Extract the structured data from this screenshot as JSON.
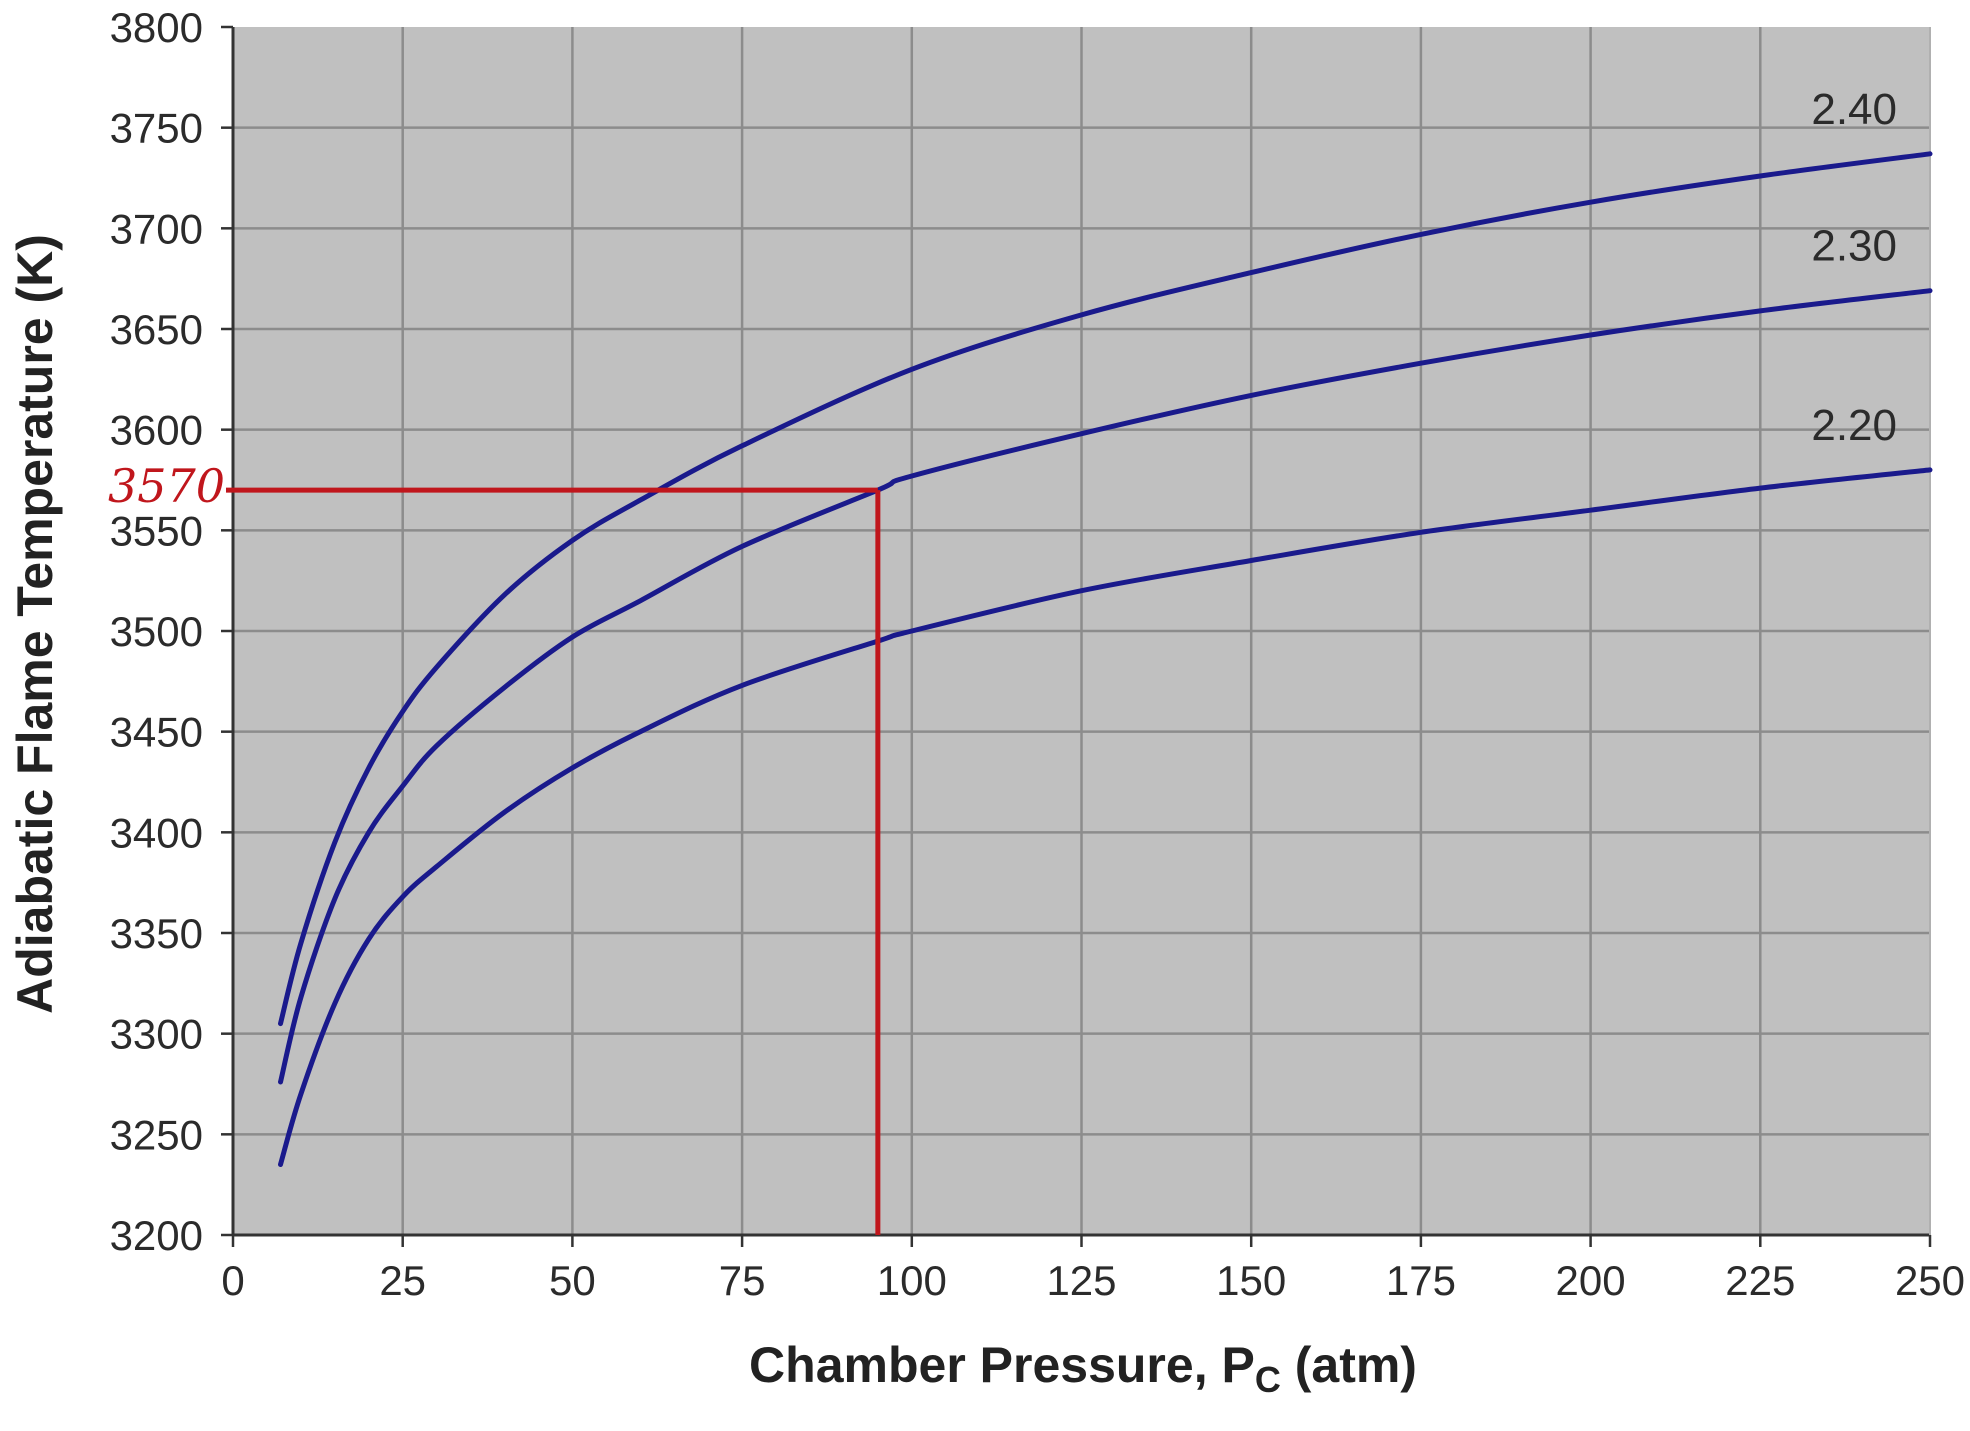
{
  "chart_data": {
    "type": "line",
    "xlabel_main": "Chamber Pressure, P",
    "xlabel_sub": "C",
    "xlabel_unit": " (atm)",
    "ylabel": "Adiabatic Flame Temperature (K)",
    "xlim": [
      0,
      250
    ],
    "ylim": [
      3200,
      3800
    ],
    "x_ticks": [
      "0",
      "25",
      "50",
      "75",
      "100",
      "125",
      "150",
      "175",
      "200",
      "225",
      "250"
    ],
    "y_ticks": [
      "3200",
      "3250",
      "3300",
      "3350",
      "3400",
      "3450",
      "3500",
      "3550",
      "3600",
      "3650",
      "3700",
      "3750",
      "3800"
    ],
    "grid": true,
    "plot_background": "#c0c0c0",
    "grid_color": "#8c8c8c",
    "series_color": "#1a1a8c",
    "series": [
      {
        "name": "2.40",
        "x": [
          7,
          10,
          15,
          20,
          25,
          30,
          40,
          50,
          60,
          75,
          100,
          125,
          150,
          175,
          200,
          225,
          250
        ],
        "y": [
          3305,
          3345,
          3395,
          3432,
          3460,
          3482,
          3518,
          3545,
          3565,
          3592,
          3630,
          3657,
          3678,
          3697,
          3713,
          3726,
          3737
        ]
      },
      {
        "name": "2.30",
        "x": [
          7,
          10,
          15,
          20,
          25,
          30,
          40,
          50,
          60,
          75,
          95,
          100,
          125,
          150,
          175,
          200,
          225,
          250
        ],
        "y": [
          3276,
          3318,
          3367,
          3400,
          3423,
          3443,
          3472,
          3497,
          3515,
          3542,
          3570,
          3577,
          3598,
          3617,
          3633,
          3647,
          3659,
          3669
        ]
      },
      {
        "name": "2.20",
        "x": [
          7,
          10,
          15,
          20,
          25,
          30,
          40,
          50,
          60,
          75,
          95,
          100,
          125,
          150,
          175,
          200,
          225,
          250
        ],
        "y": [
          3235,
          3270,
          3315,
          3347,
          3368,
          3383,
          3410,
          3432,
          3450,
          3473,
          3495,
          3500,
          3520,
          3535,
          3549,
          3560,
          3571,
          3580
        ]
      }
    ],
    "annotation": {
      "text": "3570",
      "color": "#c0161c",
      "x": 95,
      "y": 3570
    }
  }
}
